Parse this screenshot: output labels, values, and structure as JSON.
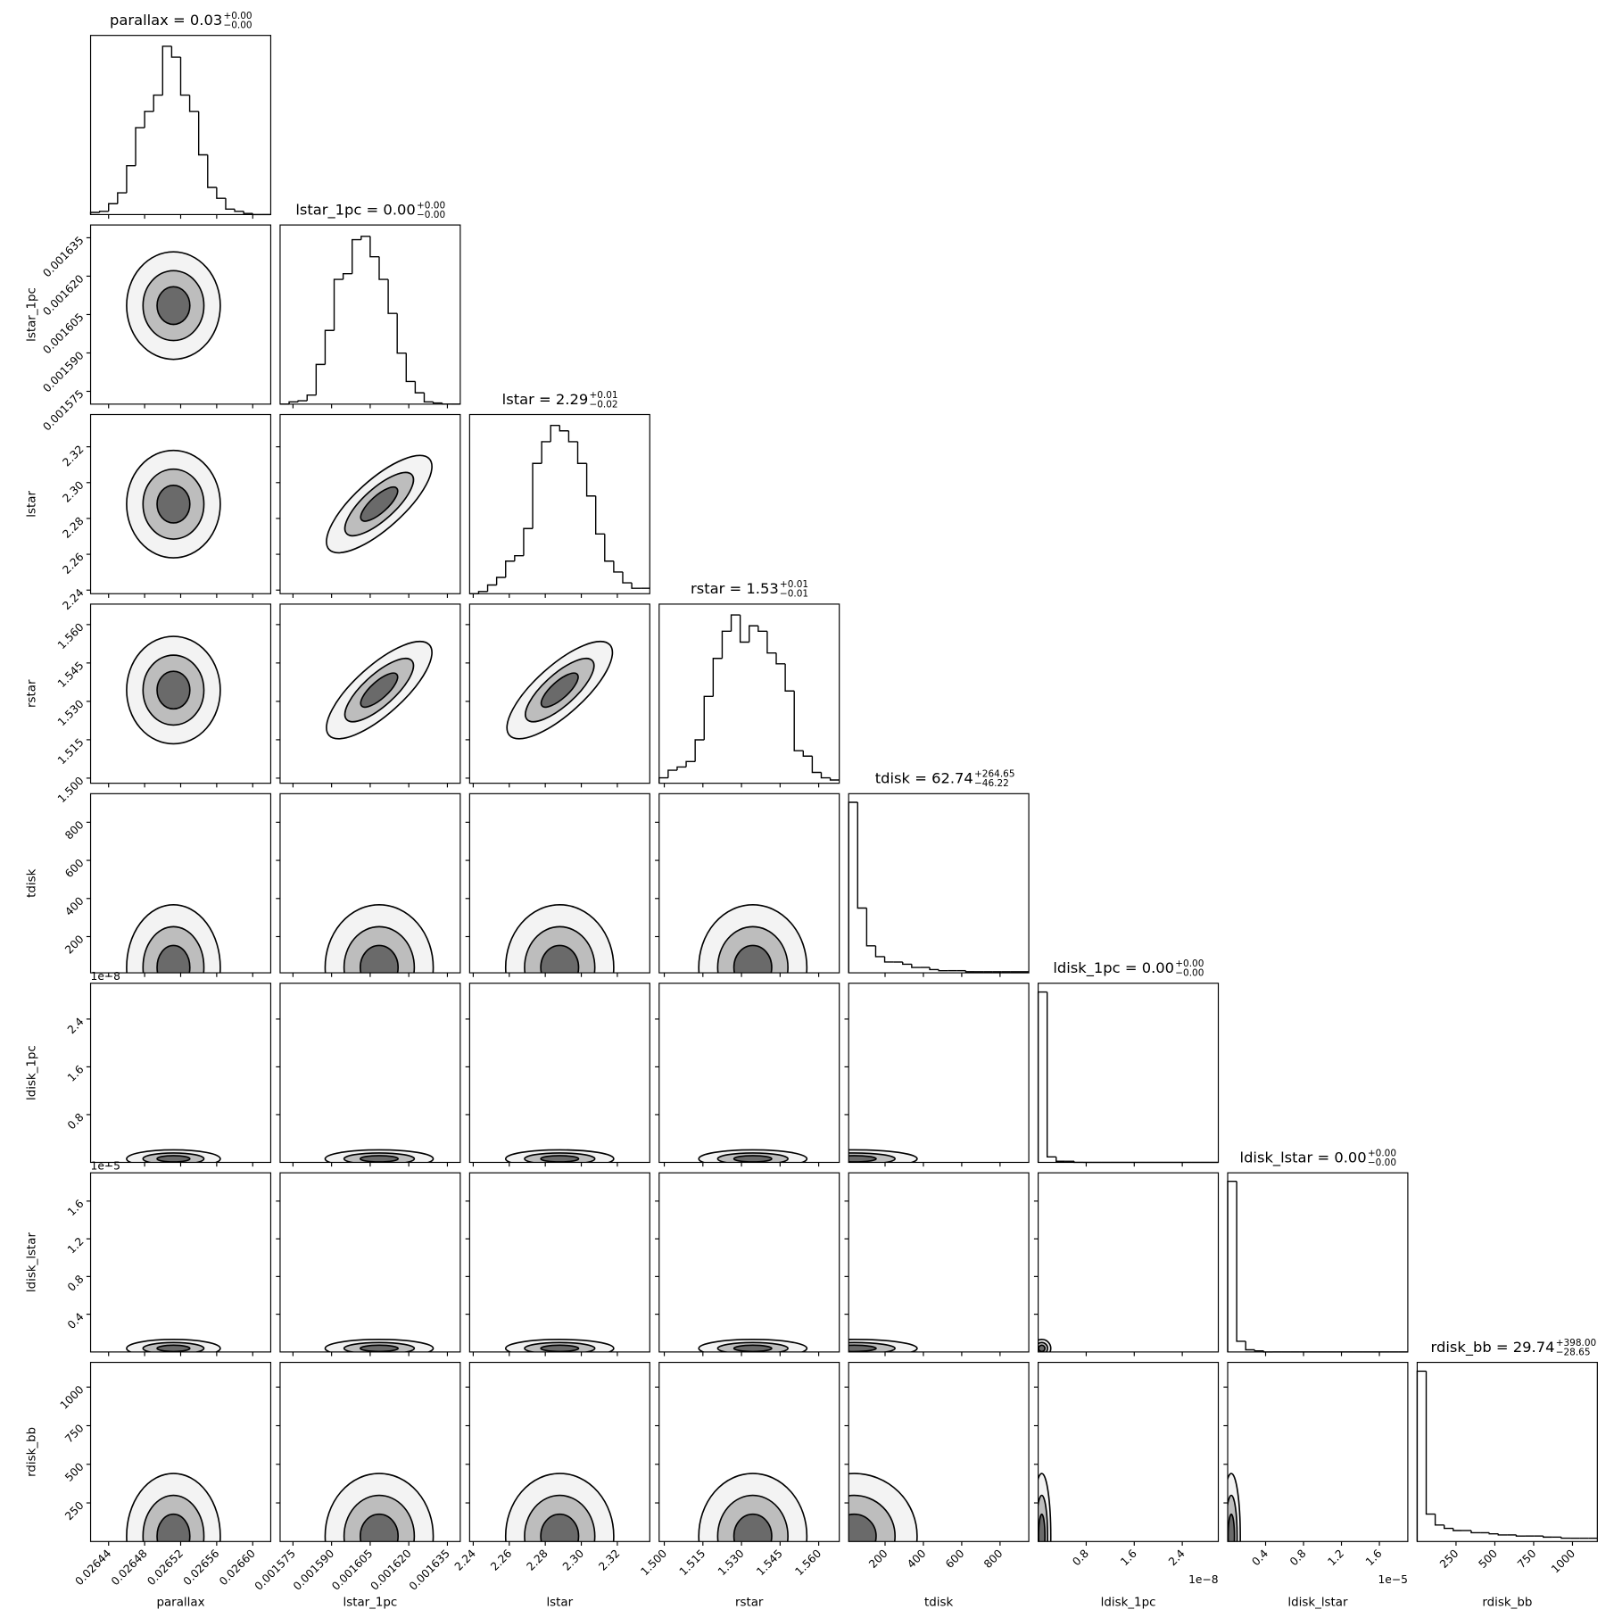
{
  "chart_data": {
    "type": "corner",
    "params": [
      {
        "name": "parallax",
        "title": "parallax = 0.03",
        "upper": "+0.00",
        "lower": "−0.00",
        "lim": [
          0.02642,
          0.02662
        ],
        "ticks": [
          0.02644,
          0.02648,
          0.02652,
          0.02656,
          {
            "value": 0.0266,
            "label": "0.02660"
          }
        ],
        "bins": [
          0.02642,
          0.02643,
          0.02644,
          0.02645,
          0.02646,
          0.02647,
          0.02648,
          0.02649,
          0.0265,
          0.02651,
          0.02652,
          0.02653,
          0.02654,
          0.02655,
          0.02656,
          0.02657,
          0.02658,
          0.02659,
          0.0266,
          0.02661,
          0.02662
        ],
        "counts": [
          2,
          3,
          10,
          20,
          45,
          80,
          95,
          110,
          155,
          145,
          110,
          95,
          55,
          25,
          15,
          5,
          3,
          1,
          0,
          0
        ],
        "hist_ylim": [
          0,
          165
        ]
      },
      {
        "name": "lstar_1pc",
        "title": "lstar_1pc = 0.00",
        "upper": "+0.00",
        "lower": "−0.00",
        "lim": [
          0.00157,
          0.00164
        ],
        "ticks": [
          0.001575,
          {
            "value": 0.00159,
            "label": "0.001590"
          },
          0.001605,
          {
            "value": 0.00162,
            "label": "0.001620"
          },
          0.001635
        ],
        "bins": [
          0.00157,
          0.0015735,
          0.001577,
          0.0015805,
          0.001584,
          0.0015875,
          0.001591,
          0.0015945,
          0.001598,
          0.0016015,
          0.001605,
          0.0016085,
          0.001612,
          0.0016155,
          0.001619,
          0.0016225,
          0.001626,
          0.0016295,
          0.001633,
          0.0016365,
          0.00164
        ],
        "counts": [
          0,
          2,
          3,
          8,
          35,
          65,
          110,
          115,
          145,
          148,
          130,
          110,
          80,
          45,
          20,
          10,
          2,
          1,
          0,
          0
        ],
        "hist_ylim": [
          0,
          158
        ]
      },
      {
        "name": "lstar",
        "title": "lstar = 2.29",
        "upper": "+0.01",
        "lower": "−0.02",
        "lim": [
          2.238,
          2.338
        ],
        "ticks": [
          2.24,
          2.26,
          2.28,
          {
            "value": 2.3,
            "label": "2.30"
          },
          2.32
        ],
        "bins": [
          2.238,
          2.243,
          2.248,
          2.253,
          2.258,
          2.263,
          2.268,
          2.273,
          2.278,
          2.283,
          2.288,
          2.293,
          2.298,
          2.303,
          2.308,
          2.313,
          2.318,
          2.323,
          2.328,
          2.333,
          2.338
        ],
        "counts": [
          0,
          2,
          8,
          15,
          30,
          35,
          60,
          120,
          140,
          155,
          150,
          140,
          120,
          90,
          55,
          30,
          20,
          10,
          5,
          5
        ],
        "hist_ylim": [
          0,
          165
        ]
      },
      {
        "name": "rstar",
        "title": "rstar = 1.53",
        "upper": "+0.01",
        "lower": "−0.01",
        "lim": [
          1.498,
          1.568
        ],
        "ticks": [
          {
            "value": 1.5,
            "label": "1.500"
          },
          1.515,
          {
            "value": 1.53,
            "label": "1.530"
          },
          1.545,
          {
            "value": 1.56,
            "label": "1.560"
          }
        ],
        "bins": [
          1.498,
          1.5015,
          1.505,
          1.5085,
          1.512,
          1.5155,
          1.519,
          1.5225,
          1.526,
          1.5295,
          1.533,
          1.5365,
          1.54,
          1.5435,
          1.547,
          1.5505,
          1.554,
          1.5575,
          1.561,
          1.5645,
          1.568
        ],
        "counts": [
          5,
          12,
          15,
          20,
          40,
          80,
          115,
          140,
          155,
          130,
          145,
          140,
          120,
          110,
          85,
          30,
          25,
          10,
          5,
          3
        ],
        "hist_ylim": [
          0,
          165
        ]
      },
      {
        "name": "tdisk",
        "title": "tdisk = 62.74",
        "upper": "+264.65",
        "lower": "−46.22",
        "lim": [
          10,
          950
        ],
        "ticks": [
          200,
          400,
          600,
          800
        ],
        "bins": [
          10,
          57,
          104,
          151,
          198,
          245,
          292,
          339,
          386,
          433,
          480,
          527,
          574,
          621,
          668,
          715,
          762,
          809,
          856,
          903,
          950
        ],
        "counts": [
          158,
          60,
          25,
          15,
          10,
          10,
          8,
          5,
          5,
          3,
          2,
          2,
          2,
          1,
          1,
          1,
          1,
          1,
          1,
          1
        ],
        "hist_ylim": [
          0,
          166
        ]
      },
      {
        "name": "ldisk_1pc",
        "title": "ldisk_1pc = 0.00",
        "upper": "+0.00",
        "lower": "−0.00",
        "offset": "1e−8",
        "lim": [
          0,
          3e-08
        ],
        "ticks": [
          {
            "value": 8e-09,
            "label": "0.8"
          },
          {
            "value": 1.6e-08,
            "label": "1.6"
          },
          {
            "value": 2.4e-08,
            "label": "2.4"
          }
        ],
        "bins": [
          0,
          1.5e-09,
          3e-09,
          4.5e-09,
          6e-09,
          7.5e-09,
          9e-09,
          1.05e-08,
          1.2e-08,
          1.35e-08,
          1.5e-08,
          1.65e-08,
          1.8e-08,
          1.95e-08,
          2.1e-08,
          2.25e-08,
          2.4e-08,
          2.55e-08,
          2.7e-08,
          2.85e-08,
          3e-08
        ],
        "counts": [
          155,
          5,
          1,
          1,
          0,
          0,
          0,
          0,
          0,
          0,
          0,
          0,
          0,
          0,
          0,
          0,
          0,
          0,
          0,
          0
        ],
        "hist_ylim": [
          0,
          163
        ]
      },
      {
        "name": "ldisk_lstar",
        "title": "ldisk_lstar = 0.00",
        "upper": "+0.00",
        "lower": "−0.00",
        "offset": "1e−5",
        "lim": [
          0,
          1.9e-05
        ],
        "ticks": [
          {
            "value": 4e-06,
            "label": "0.4"
          },
          {
            "value": 8e-06,
            "label": "0.8"
          },
          {
            "value": 1.2e-05,
            "label": "1.2"
          },
          {
            "value": 1.6e-05,
            "label": "1.6"
          }
        ],
        "bins": [
          0,
          9.5e-07,
          1.9e-06,
          2.85e-06,
          3.8e-06,
          4.75e-06,
          5.7e-06,
          6.65e-06,
          7.6e-06,
          8.55e-06,
          9.5e-06,
          1.045e-05,
          1.14e-05,
          1.235e-05,
          1.33e-05,
          1.425e-05,
          1.52e-05,
          1.615e-05,
          1.71e-05,
          1.805e-05,
          1.9e-05
        ],
        "counts": [
          160,
          10,
          2,
          1,
          0,
          0,
          0,
          0,
          0,
          0,
          0,
          0,
          0,
          0,
          0,
          0,
          0,
          0,
          0,
          0
        ],
        "hist_ylim": [
          0,
          168
        ]
      },
      {
        "name": "rdisk_bb",
        "title": "rdisk_bb = 29.74",
        "upper": "+398.00",
        "lower": "−28.65",
        "lim": [
          0,
          1160
        ],
        "ticks": [
          250,
          500,
          750,
          1000
        ],
        "bins": [
          0,
          58,
          116,
          174,
          232,
          290,
          348,
          406,
          464,
          522,
          580,
          638,
          696,
          754,
          812,
          870,
          928,
          986,
          1044,
          1102,
          1160
        ],
        "counts": [
          155,
          25,
          15,
          12,
          10,
          10,
          8,
          8,
          7,
          6,
          6,
          5,
          5,
          5,
          4,
          4,
          3,
          3,
          3,
          3
        ],
        "hist_ylim": [
          0,
          163
        ]
      }
    ]
  }
}
